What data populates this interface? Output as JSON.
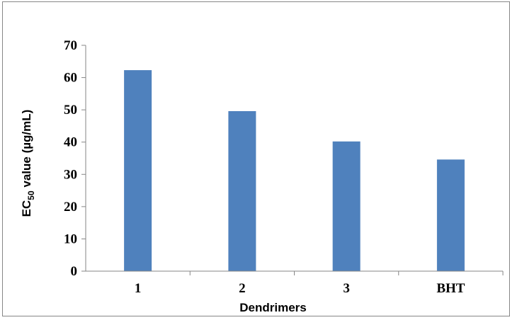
{
  "chart_data": {
    "type": "bar",
    "categories": [
      "1",
      "2",
      "3",
      "BHT"
    ],
    "values": [
      62.3,
      49.6,
      40.2,
      34.6
    ],
    "xlabel": "Dendrimers",
    "ylabel": {
      "prefix": "EC",
      "subscript": "50",
      "suffix": " value (µg/mL)"
    },
    "ylim": [
      0,
      70
    ],
    "yticks": [
      0,
      10,
      20,
      30,
      40,
      50,
      60,
      70
    ],
    "grid": false,
    "legend": "none",
    "bar_color": "#4f81bd",
    "axis_color": "#868686",
    "frame_color": "#868686"
  }
}
